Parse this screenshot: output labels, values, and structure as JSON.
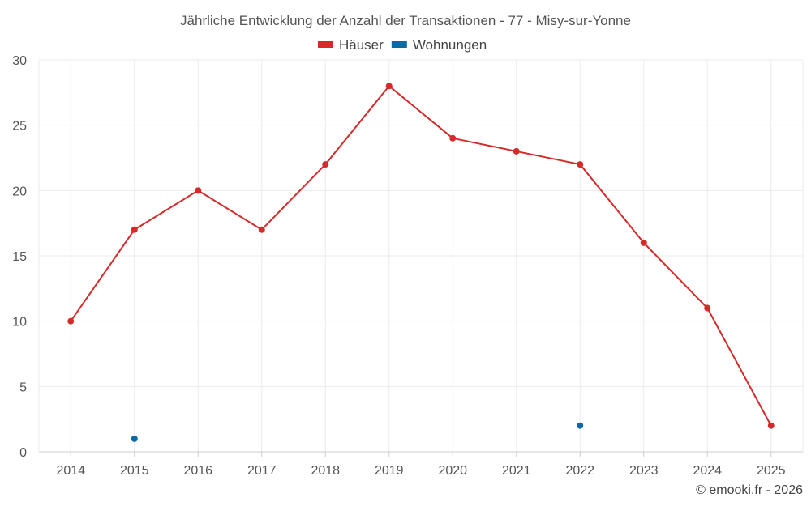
{
  "chart_data": {
    "type": "line",
    "title": "Jährliche Entwicklung der Anzahl der Transaktionen - 77 - Misy-sur-Yonne",
    "x": [
      "2014",
      "2015",
      "2016",
      "2017",
      "2018",
      "2019",
      "2020",
      "2021",
      "2022",
      "2023",
      "2024",
      "2025"
    ],
    "ylim": [
      0,
      30
    ],
    "yticks": [
      "0",
      "5",
      "10",
      "15",
      "20",
      "25",
      "30"
    ],
    "grid": true,
    "legend_position": "top-center",
    "series": [
      {
        "name": "Häuser",
        "color": "#d32a2a",
        "values": [
          10,
          17,
          20,
          17,
          22,
          28,
          24,
          23,
          22,
          16,
          11,
          2
        ]
      },
      {
        "name": "Wohnungen",
        "color": "#0a6aa6",
        "values": [
          null,
          1,
          null,
          null,
          null,
          null,
          null,
          null,
          2,
          null,
          null,
          null
        ]
      }
    ]
  },
  "credit": "© emooki.fr - 2026"
}
